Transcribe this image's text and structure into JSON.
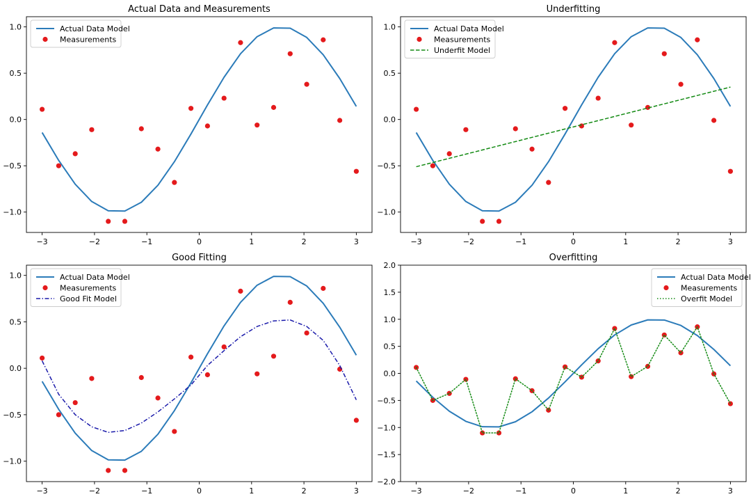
{
  "chart_data": [
    {
      "type": "line",
      "title": "Actual Data and Measurements",
      "xlabel": "",
      "ylabel": "",
      "xlim": [
        -3.3,
        3.3
      ],
      "ylim": [
        -1.22,
        1.11
      ],
      "xticks": [
        -3,
        -2,
        -1,
        0,
        1,
        2,
        3
      ],
      "xtick_labels": [
        "−3",
        "−2",
        "−1",
        "0",
        "1",
        "2",
        "3"
      ],
      "yticks": [
        -1.0,
        -0.5,
        0.0,
        0.5,
        1.0
      ],
      "ytick_labels": [
        "−1.0",
        "−0.5",
        "0.0",
        "0.5",
        "1.0"
      ],
      "legend": "top-left",
      "series": [
        {
          "name": "Actual Data Model",
          "style": "line",
          "color": "#2b7bb9",
          "x": [
            -3.0,
            -2.684,
            -2.368,
            -2.053,
            -1.737,
            -1.421,
            -1.105,
            -0.789,
            -0.474,
            -0.158,
            0.158,
            0.474,
            0.789,
            1.105,
            1.421,
            1.737,
            2.053,
            2.368,
            2.684,
            3.0
          ],
          "y": [
            -0.141,
            -0.442,
            -0.699,
            -0.886,
            -0.986,
            -0.989,
            -0.894,
            -0.71,
            -0.456,
            -0.157,
            0.157,
            0.456,
            0.71,
            0.894,
            0.989,
            0.986,
            0.886,
            0.699,
            0.442,
            0.141
          ]
        },
        {
          "name": "Measurements",
          "style": "scatter",
          "color": "#e41a1c",
          "x": [
            -3.0,
            -2.684,
            -2.368,
            -2.053,
            -1.737,
            -1.421,
            -1.105,
            -0.789,
            -0.474,
            -0.158,
            0.158,
            0.474,
            0.789,
            1.105,
            1.421,
            1.737,
            2.053,
            2.368,
            2.684,
            3.0
          ],
          "y": [
            0.11,
            -0.5,
            -0.37,
            -0.11,
            -1.1,
            -1.1,
            -0.1,
            -0.32,
            -0.68,
            0.12,
            -0.07,
            0.23,
            0.83,
            -0.06,
            0.13,
            0.71,
            0.38,
            0.86,
            -0.01,
            -0.56
          ]
        }
      ]
    },
    {
      "type": "line",
      "title": "Underfitting",
      "xlabel": "",
      "ylabel": "",
      "xlim": [
        -3.3,
        3.3
      ],
      "ylim": [
        -1.22,
        1.11
      ],
      "xticks": [
        -3,
        -2,
        -1,
        0,
        1,
        2,
        3
      ],
      "xtick_labels": [
        "−3",
        "−2",
        "−1",
        "0",
        "1",
        "2",
        "3"
      ],
      "yticks": [
        -1.0,
        -0.5,
        0.0,
        0.5,
        1.0
      ],
      "ytick_labels": [
        "−1.0",
        "−0.5",
        "0.0",
        "0.5",
        "1.0"
      ],
      "legend": "top-left",
      "series": [
        {
          "name": "Actual Data Model",
          "style": "line",
          "color": "#2b7bb9",
          "x": [
            -3.0,
            -2.684,
            -2.368,
            -2.053,
            -1.737,
            -1.421,
            -1.105,
            -0.789,
            -0.474,
            -0.158,
            0.158,
            0.474,
            0.789,
            1.105,
            1.421,
            1.737,
            2.053,
            2.368,
            2.684,
            3.0
          ],
          "y": [
            -0.141,
            -0.442,
            -0.699,
            -0.886,
            -0.986,
            -0.989,
            -0.894,
            -0.71,
            -0.456,
            -0.157,
            0.157,
            0.456,
            0.71,
            0.894,
            0.989,
            0.986,
            0.886,
            0.699,
            0.442,
            0.141
          ]
        },
        {
          "name": "Measurements",
          "style": "scatter",
          "color": "#e41a1c",
          "x": [
            -3.0,
            -2.684,
            -2.368,
            -2.053,
            -1.737,
            -1.421,
            -1.105,
            -0.789,
            -0.474,
            -0.158,
            0.158,
            0.474,
            0.789,
            1.105,
            1.421,
            1.737,
            2.053,
            2.368,
            2.684,
            3.0
          ],
          "y": [
            0.11,
            -0.5,
            -0.37,
            -0.11,
            -1.1,
            -1.1,
            -0.1,
            -0.32,
            -0.68,
            0.12,
            -0.07,
            0.23,
            0.83,
            -0.06,
            0.13,
            0.71,
            0.38,
            0.86,
            -0.01,
            -0.56
          ]
        },
        {
          "name": "Underfit Model",
          "style": "dashed",
          "color": "#138a13",
          "x": [
            -3.0,
            3.0
          ],
          "y": [
            -0.51,
            0.35
          ]
        }
      ]
    },
    {
      "type": "line",
      "title": "Good Fitting",
      "xlabel": "",
      "ylabel": "",
      "xlim": [
        -3.3,
        3.3
      ],
      "ylim": [
        -1.22,
        1.11
      ],
      "xticks": [
        -3,
        -2,
        -1,
        0,
        1,
        2,
        3
      ],
      "xtick_labels": [
        "−3",
        "−2",
        "−1",
        "0",
        "1",
        "2",
        "3"
      ],
      "yticks": [
        -1.0,
        -0.5,
        0.0,
        0.5,
        1.0
      ],
      "ytick_labels": [
        "−1.0",
        "−0.5",
        "0.0",
        "0.5",
        "1.0"
      ],
      "legend": "top-left",
      "series": [
        {
          "name": "Actual Data Model",
          "style": "line",
          "color": "#2b7bb9",
          "x": [
            -3.0,
            -2.684,
            -2.368,
            -2.053,
            -1.737,
            -1.421,
            -1.105,
            -0.789,
            -0.474,
            -0.158,
            0.158,
            0.474,
            0.789,
            1.105,
            1.421,
            1.737,
            2.053,
            2.368,
            2.684,
            3.0
          ],
          "y": [
            -0.141,
            -0.442,
            -0.699,
            -0.886,
            -0.986,
            -0.989,
            -0.894,
            -0.71,
            -0.456,
            -0.157,
            0.157,
            0.456,
            0.71,
            0.894,
            0.989,
            0.986,
            0.886,
            0.699,
            0.442,
            0.141
          ]
        },
        {
          "name": "Measurements",
          "style": "scatter",
          "color": "#e41a1c",
          "x": [
            -3.0,
            -2.684,
            -2.368,
            -2.053,
            -1.737,
            -1.421,
            -1.105,
            -0.789,
            -0.474,
            -0.158,
            0.158,
            0.474,
            0.789,
            1.105,
            1.421,
            1.737,
            2.053,
            2.368,
            2.684,
            3.0
          ],
          "y": [
            0.11,
            -0.5,
            -0.37,
            -0.11,
            -1.1,
            -1.1,
            -0.1,
            -0.32,
            -0.68,
            0.12,
            -0.07,
            0.23,
            0.83,
            -0.06,
            0.13,
            0.71,
            0.38,
            0.86,
            -0.01,
            -0.56
          ]
        },
        {
          "name": "Good Fit Model",
          "style": "dashdot",
          "color": "#1a1aaa",
          "x": [
            -3.0,
            -2.684,
            -2.368,
            -2.053,
            -1.737,
            -1.421,
            -1.105,
            -0.789,
            -0.474,
            -0.158,
            0.158,
            0.474,
            0.789,
            1.105,
            1.421,
            1.737,
            2.053,
            2.368,
            2.684,
            3.0
          ],
          "y": [
            0.08,
            -0.28,
            -0.5,
            -0.63,
            -0.69,
            -0.67,
            -0.59,
            -0.47,
            -0.33,
            -0.18,
            0.03,
            0.19,
            0.34,
            0.45,
            0.51,
            0.52,
            0.45,
            0.3,
            0.03,
            -0.34
          ]
        }
      ]
    },
    {
      "type": "line",
      "title": "Overfitting",
      "xlabel": "",
      "ylabel": "",
      "xlim": [
        -3.3,
        3.3
      ],
      "ylim": [
        -2.0,
        2.0
      ],
      "xticks": [
        -3,
        -2,
        -1,
        0,
        1,
        2,
        3
      ],
      "xtick_labels": [
        "−3",
        "−2",
        "−1",
        "0",
        "1",
        "2",
        "3"
      ],
      "yticks": [
        -2.0,
        -1.5,
        -1.0,
        -0.5,
        0.0,
        0.5,
        1.0,
        1.5,
        2.0
      ],
      "ytick_labels": [
        "−2.0",
        "−1.5",
        "−1.0",
        "−0.5",
        "0.0",
        "0.5",
        "1.0",
        "1.5",
        "2.0"
      ],
      "legend": "top-right",
      "series": [
        {
          "name": "Actual Data Model",
          "style": "line",
          "color": "#2b7bb9",
          "x": [
            -3.0,
            -2.684,
            -2.368,
            -2.053,
            -1.737,
            -1.421,
            -1.105,
            -0.789,
            -0.474,
            -0.158,
            0.158,
            0.474,
            0.789,
            1.105,
            1.421,
            1.737,
            2.053,
            2.368,
            2.684,
            3.0
          ],
          "y": [
            -0.141,
            -0.442,
            -0.699,
            -0.886,
            -0.986,
            -0.989,
            -0.894,
            -0.71,
            -0.456,
            -0.157,
            0.157,
            0.456,
            0.71,
            0.894,
            0.989,
            0.986,
            0.886,
            0.699,
            0.442,
            0.141
          ]
        },
        {
          "name": "Measurements",
          "style": "scatter",
          "color": "#e41a1c",
          "x": [
            -3.0,
            -2.684,
            -2.368,
            -2.053,
            -1.737,
            -1.421,
            -1.105,
            -0.789,
            -0.474,
            -0.158,
            0.158,
            0.474,
            0.789,
            1.105,
            1.421,
            1.737,
            2.053,
            2.368,
            2.684,
            3.0
          ],
          "y": [
            0.11,
            -0.5,
            -0.37,
            -0.11,
            -1.1,
            -1.1,
            -0.1,
            -0.32,
            -0.68,
            0.12,
            -0.07,
            0.23,
            0.83,
            -0.06,
            0.13,
            0.71,
            0.38,
            0.86,
            -0.01,
            -0.56
          ]
        },
        {
          "name": "Overfit Model",
          "style": "dotted",
          "color": "#138a13",
          "x": [
            -3.0,
            -2.684,
            -2.368,
            -2.053,
            -1.737,
            -1.421,
            -1.105,
            -0.789,
            -0.474,
            -0.158,
            0.158,
            0.474,
            0.789,
            1.105,
            1.421,
            1.737,
            2.053,
            2.368,
            2.684,
            3.0
          ],
          "y": [
            0.11,
            -0.5,
            -0.37,
            -0.11,
            -1.1,
            -1.1,
            -0.1,
            -0.32,
            -0.68,
            0.12,
            -0.07,
            0.23,
            0.83,
            -0.06,
            0.13,
            0.71,
            0.38,
            0.86,
            -0.01,
            -0.56
          ]
        }
      ]
    }
  ]
}
